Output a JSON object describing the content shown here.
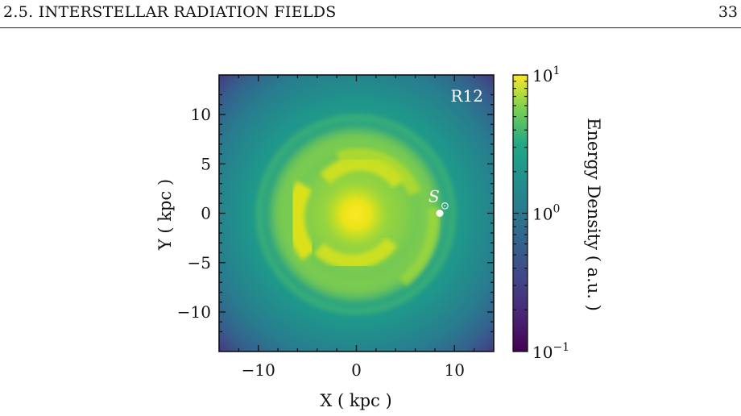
{
  "header": {
    "section": "2.5.  INTERSTELLAR RADIATION FIELDS",
    "page": "33"
  },
  "chart_data": {
    "type": "heatmap",
    "title": "",
    "panel_label": "R12",
    "xlabel": "X ( kpc )",
    "ylabel": "Y ( kpc )",
    "xlim": [
      -14,
      14
    ],
    "ylim": [
      -14,
      14
    ],
    "xticks": [
      -10,
      0,
      10
    ],
    "yticks": [
      10,
      5,
      0,
      -5,
      -10
    ],
    "tick_labels_x": [
      "−10",
      "0",
      "10"
    ],
    "tick_labels_y": [
      "10",
      "5",
      "0",
      "−5",
      "−10"
    ],
    "colorbar": {
      "label": "Energy Density ( a.u. )",
      "scale": "log",
      "range": [
        0.1,
        10
      ],
      "colormap": "viridis",
      "ticks": [
        {
          "value": 10,
          "base": "10",
          "exp": "1"
        },
        {
          "value": 1,
          "base": "10",
          "exp": "0"
        },
        {
          "value": 0.1,
          "base": "10",
          "exp": "−1"
        }
      ]
    },
    "sun_marker": {
      "label": "S",
      "symbol": "⊙",
      "x": 8.5,
      "y": 0
    },
    "colors": {
      "low": "#440154",
      "mid": "#21918c",
      "high": "#fde725"
    }
  }
}
